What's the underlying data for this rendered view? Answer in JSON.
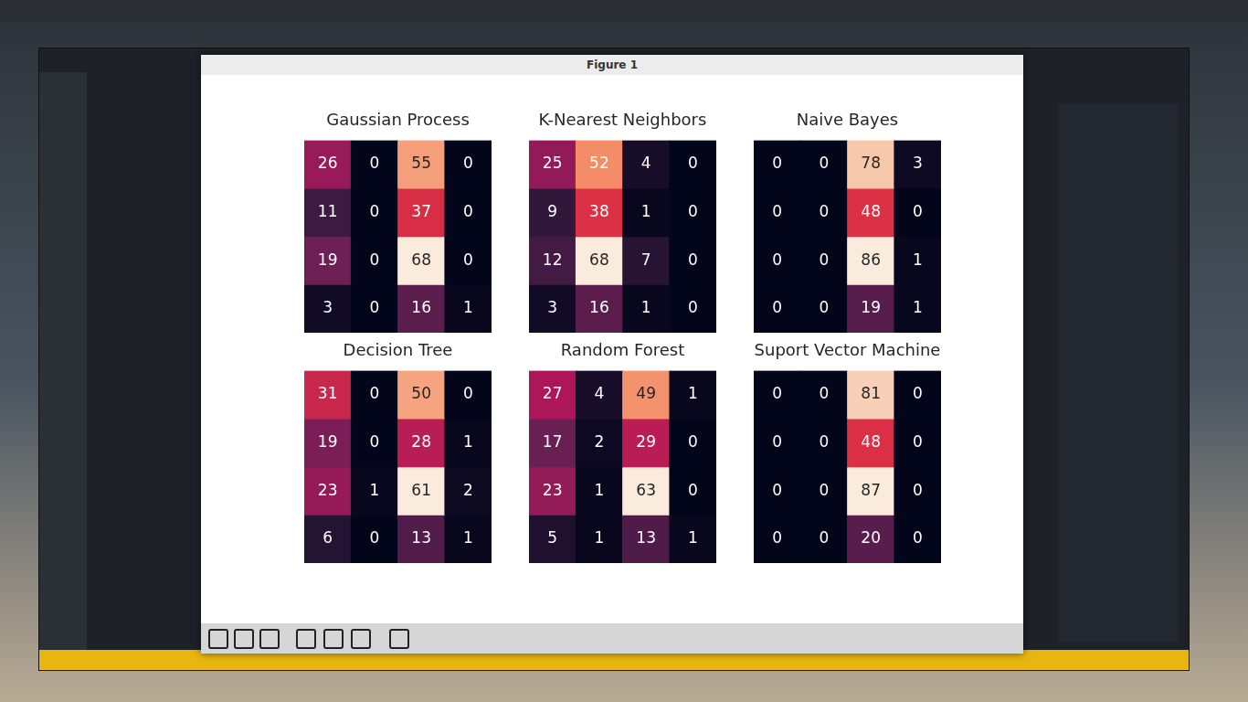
{
  "window": {
    "title": "Figure 1"
  },
  "chart_data": [
    {
      "type": "heatmap",
      "title": "Gaussian Process",
      "cells": [
        [
          26,
          0,
          55,
          0
        ],
        [
          11,
          0,
          37,
          0
        ],
        [
          19,
          0,
          68,
          0
        ],
        [
          3,
          0,
          16,
          1
        ]
      ],
      "data_labels": true,
      "tick_labels": false
    },
    {
      "type": "heatmap",
      "title": "K-Nearest Neighbors",
      "cells": [
        [
          25,
          52,
          4,
          0
        ],
        [
          9,
          38,
          1,
          0
        ],
        [
          12,
          68,
          7,
          0
        ],
        [
          3,
          16,
          1,
          0
        ]
      ],
      "data_labels": true,
      "tick_labels": false
    },
    {
      "type": "heatmap",
      "title": "Naive Bayes",
      "cells": [
        [
          0,
          0,
          78,
          3
        ],
        [
          0,
          0,
          48,
          0
        ],
        [
          0,
          0,
          86,
          1
        ],
        [
          0,
          0,
          19,
          1
        ]
      ],
      "data_labels": true,
      "tick_labels": false
    },
    {
      "type": "heatmap",
      "title": "Decision Tree",
      "cells": [
        [
          31,
          0,
          50,
          0
        ],
        [
          19,
          0,
          28,
          1
        ],
        [
          23,
          1,
          61,
          2
        ],
        [
          6,
          0,
          13,
          1
        ]
      ],
      "data_labels": true,
      "tick_labels": false
    },
    {
      "type": "heatmap",
      "title": "Random Forest",
      "cells": [
        [
          27,
          4,
          49,
          1
        ],
        [
          17,
          2,
          29,
          0
        ],
        [
          23,
          1,
          63,
          0
        ],
        [
          5,
          1,
          13,
          1
        ]
      ],
      "data_labels": true,
      "tick_labels": false
    },
    {
      "type": "heatmap",
      "title": "Suport Vector Machine",
      "cells": [
        [
          0,
          0,
          81,
          0
        ],
        [
          0,
          0,
          48,
          0
        ],
        [
          0,
          0,
          87,
          0
        ],
        [
          0,
          0,
          20,
          0
        ]
      ],
      "data_labels": true,
      "tick_labels": false
    }
  ]
}
